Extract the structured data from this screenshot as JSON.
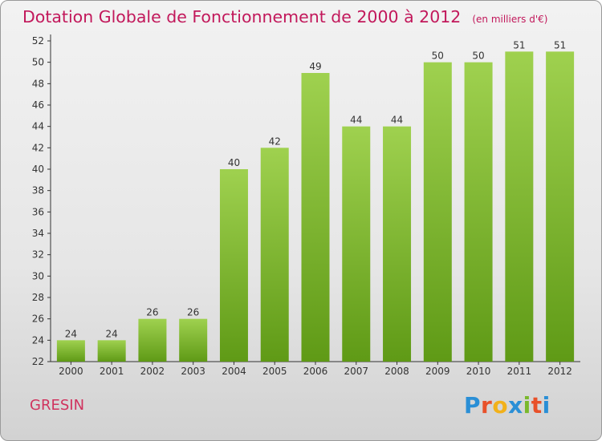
{
  "header": {
    "title": "Dotation Globale de Fonctionnement de 2000 à 2012",
    "unit": "(en milliers d'€)"
  },
  "footer": {
    "commune": "GRESIN",
    "logo_text": "Proxiti"
  },
  "colors": {
    "title": "#c2185b",
    "bar_light": "#9fd14f",
    "bar_dark": "#5f9a16",
    "axis": "#333333",
    "label": "#333333"
  },
  "chart_data": {
    "type": "bar",
    "categories": [
      "2000",
      "2001",
      "2002",
      "2003",
      "2004",
      "2005",
      "2006",
      "2007",
      "2008",
      "2009",
      "2010",
      "2011",
      "2012"
    ],
    "values": [
      24,
      24,
      26,
      26,
      40,
      42,
      49,
      44,
      44,
      50,
      50,
      51,
      51
    ],
    "ylim": [
      22,
      52
    ],
    "yticks": [
      22,
      24,
      26,
      28,
      30,
      32,
      34,
      36,
      38,
      40,
      42,
      44,
      46,
      48,
      50,
      52
    ],
    "data_labels": true,
    "grid": false
  }
}
